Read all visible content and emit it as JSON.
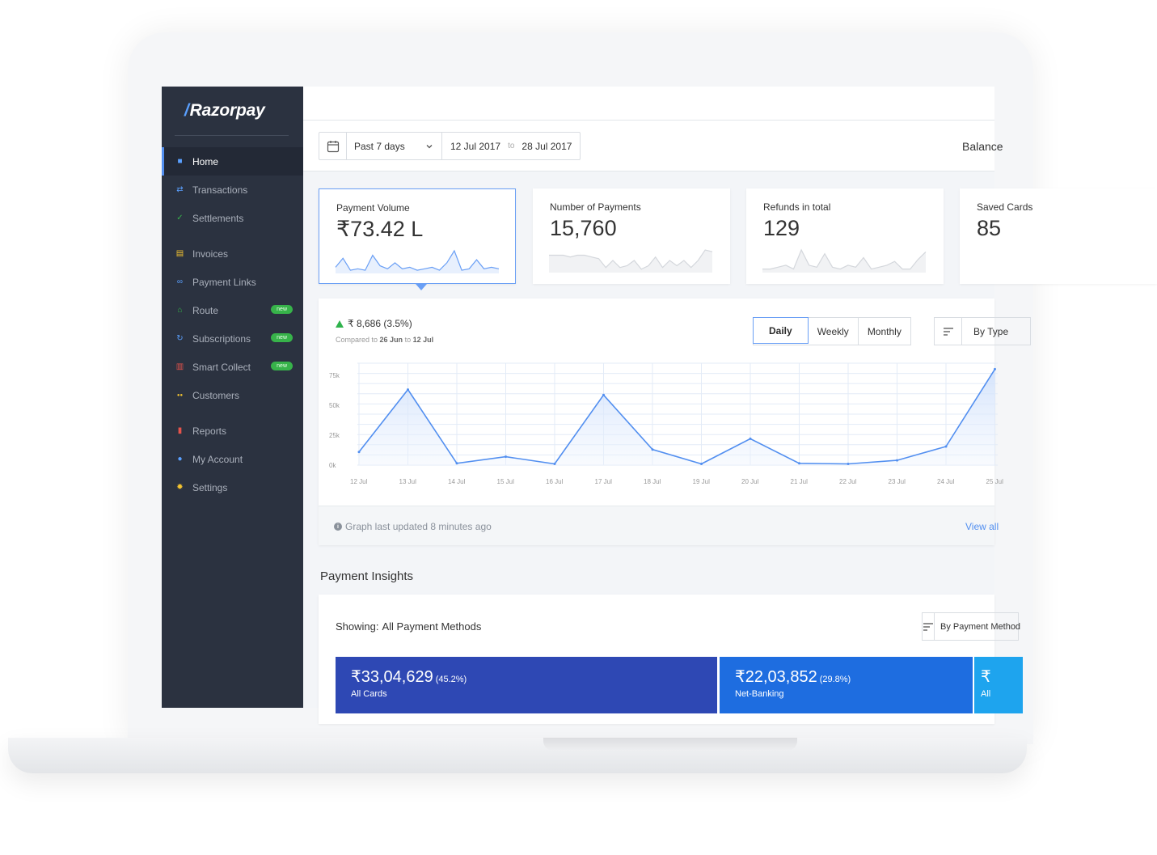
{
  "brand": {
    "name": "Razorpay",
    "mark": "/"
  },
  "sidebar": {
    "items": [
      {
        "label": "Home",
        "icon": "home-icon",
        "color": "#5aa0ff"
      },
      {
        "label": "Transactions",
        "icon": "transactions-icon",
        "color": "#5aa0ff"
      },
      {
        "label": "Settlements",
        "icon": "settlements-icon",
        "color": "#37b34a"
      },
      {
        "label": "Invoices",
        "icon": "invoices-icon",
        "color": "#f4c430"
      },
      {
        "label": "Payment Links",
        "icon": "link-icon",
        "color": "#5aa0ff"
      },
      {
        "label": "Route",
        "icon": "route-icon",
        "color": "#37b34a",
        "badge": "new"
      },
      {
        "label": "Subscriptions",
        "icon": "subscriptions-icon",
        "color": "#5aa0ff",
        "badge": "new"
      },
      {
        "label": "Smart Collect",
        "icon": "bank-icon",
        "color": "#e5534b",
        "badge": "new"
      },
      {
        "label": "Customers",
        "icon": "customers-icon",
        "color": "#f4c430"
      },
      {
        "label": "Reports",
        "icon": "reports-icon",
        "color": "#e5534b"
      },
      {
        "label": "My Account",
        "icon": "account-icon",
        "color": "#5aa0ff"
      },
      {
        "label": "Settings",
        "icon": "settings-icon",
        "color": "#f4c430"
      }
    ]
  },
  "filters": {
    "range_label": "Past 7 days",
    "from_date": "12 Jul 2017",
    "to_word": "to",
    "to_date": "28 Jul 2017",
    "balance_label": "Balance"
  },
  "cards": [
    {
      "label": "Payment Volume",
      "value": "₹73.42 L",
      "spark": [
        3,
        9,
        1,
        2,
        1,
        11,
        4,
        2,
        6,
        2,
        3,
        1,
        2,
        3,
        1,
        6,
        14,
        1,
        2,
        8,
        2,
        3,
        2
      ]
    },
    {
      "label": "Number of Payments",
      "value": "15,760",
      "spark": [
        9,
        9,
        9,
        8,
        9,
        9,
        8,
        7,
        2,
        6,
        2,
        3,
        6,
        1,
        3,
        8,
        2,
        6,
        3,
        6,
        2,
        6,
        12,
        11
      ]
    },
    {
      "label": "Refunds in total",
      "value": "129",
      "spark": [
        1,
        1,
        2,
        3,
        1,
        11,
        3,
        2,
        9,
        2,
        1,
        3,
        2,
        7,
        1,
        2,
        3,
        5,
        1,
        1,
        6,
        10
      ]
    },
    {
      "label": "Saved Cards",
      "value": "85"
    }
  ],
  "chart": {
    "delta_value": "₹ 8,686",
    "delta_percent": "(3.5%)",
    "compare_prefix": "Compared to",
    "compare_from": "26 Jun",
    "compare_to_word": "to",
    "compare_to": "12 Jul",
    "periods": [
      "Daily",
      "Weekly",
      "Monthly"
    ],
    "active_period": "Daily",
    "group_by": "By Type",
    "updated_text": "Graph last updated 8 minutes ago",
    "view_all": "View all"
  },
  "chart_data": {
    "type": "area",
    "categories": [
      "12 Jul",
      "13 Jul",
      "14 Jul",
      "15 Jul",
      "16 Jul",
      "17 Jul",
      "18 Jul",
      "19 Jul",
      "20 Jul",
      "21 Jul",
      "22 Jul",
      "23 Jul",
      "24 Jul",
      "25 Jul"
    ],
    "values": [
      11000,
      63000,
      1500,
      7000,
      1000,
      58500,
      13000,
      1000,
      22000,
      1500,
      1000,
      4000,
      15500,
      80000
    ],
    "yticks": [
      "0k",
      "25k",
      "50k",
      "75k"
    ],
    "ylim": [
      0,
      85000
    ],
    "grid": true,
    "color": "#528ff0"
  },
  "insights": {
    "title": "Payment Insights",
    "showing_label": "Showing:",
    "showing_value": "All Payment Methods",
    "group_by": "By Payment Method",
    "methods": [
      {
        "amount": "₹33,04,629",
        "share": "(45.2%)",
        "name": "All Cards",
        "color": "#2e48b4"
      },
      {
        "amount": "₹22,03,852",
        "share": "(29.8%)",
        "name": "Net-Banking",
        "color": "#1e6de0"
      },
      {
        "amount": "₹",
        "share": "",
        "name": "All",
        "color": "#1ea4ee"
      }
    ]
  }
}
